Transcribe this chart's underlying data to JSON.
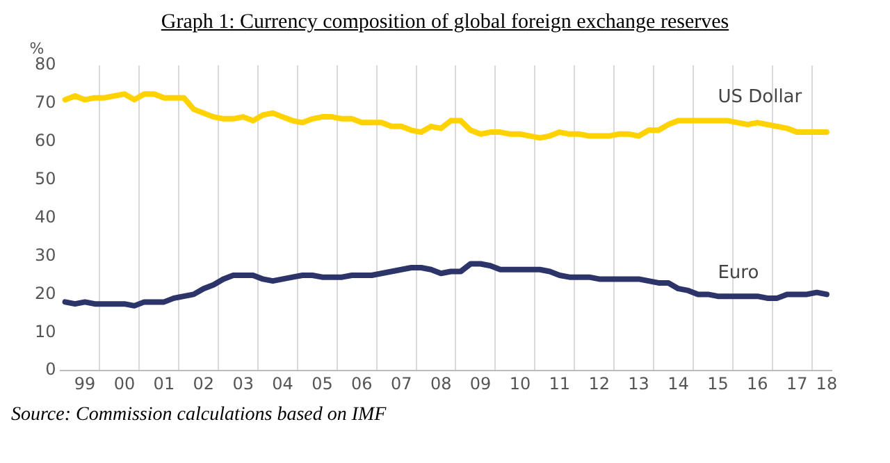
{
  "chart_data": {
    "type": "line",
    "title": "Graph 1: Currency composition of global foreign exchange reserves",
    "ylabel": "%",
    "annotations": [
      "Source: Commission calculations based on IMF"
    ],
    "categories": [
      null,
      null,
      "99",
      null,
      null,
      null,
      "00",
      null,
      null,
      null,
      "01",
      null,
      null,
      null,
      "02",
      null,
      null,
      null,
      "03",
      null,
      null,
      null,
      "04",
      null,
      null,
      null,
      "05",
      null,
      null,
      null,
      "06",
      null,
      null,
      null,
      "07",
      null,
      null,
      null,
      "08",
      null,
      null,
      null,
      "09",
      null,
      null,
      null,
      "10",
      null,
      null,
      null,
      "11",
      null,
      null,
      null,
      "12",
      null,
      null,
      null,
      "13",
      null,
      null,
      null,
      "14",
      null,
      null,
      null,
      "15",
      null,
      null,
      null,
      "16",
      null,
      null,
      null,
      "17",
      null,
      null,
      "18"
    ],
    "series": [
      {
        "name": "US Dollar",
        "color": "#ffd200",
        "values": [
          71,
          72,
          71,
          71.5,
          71.5,
          72,
          72.5,
          71,
          72.5,
          72.5,
          71.5,
          71.5,
          71.5,
          68.5,
          67.5,
          66.5,
          66,
          66,
          66.5,
          65.5,
          67,
          67.5,
          66.5,
          65.5,
          65,
          66,
          66.5,
          66.5,
          66,
          66,
          65,
          65,
          65,
          64,
          64,
          63,
          62.5,
          64,
          63.5,
          65.5,
          65.5,
          63,
          62,
          62.5,
          62.5,
          62,
          62,
          61.5,
          61,
          61.5,
          62.5,
          62,
          62,
          61.5,
          61.5,
          61.5,
          62,
          62,
          61.5,
          63,
          63,
          64.5,
          65.5,
          65.5,
          65.5,
          65.5,
          65.5,
          65.5,
          65,
          64.5,
          65,
          64.5,
          64,
          63.5,
          62.5,
          62.5,
          62.5,
          62.5
        ]
      },
      {
        "name": "Euro",
        "color": "#2c3469",
        "values": [
          18,
          17.5,
          18,
          17.5,
          17.5,
          17.5,
          17.5,
          17,
          18,
          18,
          18,
          19,
          19.5,
          20,
          21.5,
          22.5,
          24,
          25,
          25,
          25,
          24,
          23.5,
          24,
          24.5,
          25,
          25,
          24.5,
          24.5,
          24.5,
          25,
          25,
          25,
          25.5,
          26,
          26.5,
          27,
          27,
          26.5,
          25.5,
          26,
          26,
          28,
          28,
          27.5,
          26.5,
          26.5,
          26.5,
          26.5,
          26.5,
          26,
          25,
          24.5,
          24.5,
          24.5,
          24,
          24,
          24,
          24,
          24,
          23.5,
          23,
          23,
          21.5,
          21,
          20,
          20,
          19.5,
          19.5,
          19.5,
          19.5,
          19.5,
          19,
          19,
          20,
          20,
          20,
          20.5,
          20
        ]
      }
    ],
    "ylim": [
      0,
      80
    ],
    "yticks": [
      0,
      10,
      20,
      30,
      40,
      50,
      60,
      70,
      80
    ],
    "grid": "x",
    "legend": false,
    "marker": "none",
    "line_style": "solid"
  }
}
